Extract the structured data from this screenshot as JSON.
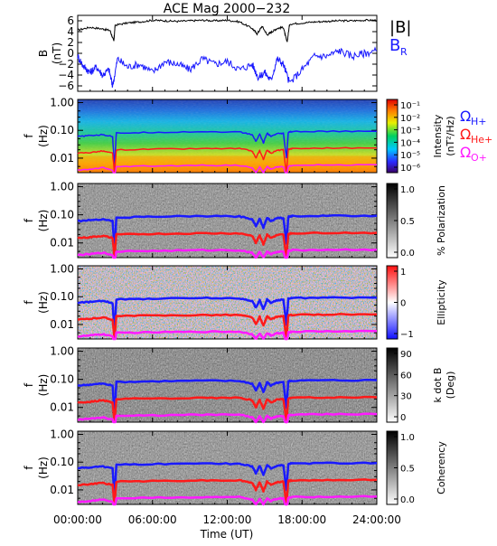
{
  "title": "ACE Mag 2000−232",
  "time_axis": {
    "label": "Time (UT)",
    "ticks": [
      "00:00:00",
      "06:00:00",
      "12:00:00",
      "18:00:00",
      "24:00:00"
    ],
    "values_hours": [
      0,
      6,
      12,
      18,
      24
    ]
  },
  "freq_axis": {
    "label_f": "f",
    "label_unit": "(Hz)",
    "ticks": [
      "1.00",
      "0.10",
      "0.01"
    ],
    "tick_values": [
      1.0,
      0.1,
      0.01
    ],
    "range": [
      0.003,
      1.3
    ],
    "scale": "log"
  },
  "gyro_labels": {
    "h": {
      "main": "Ω",
      "sub": "H+",
      "color": "#1a1aff"
    },
    "he": {
      "main": "Ω",
      "sub": "He+",
      "color": "#ff1a1a"
    },
    "o": {
      "main": "Ω",
      "sub": "O+",
      "color": "#ff1aff"
    }
  },
  "panels": [
    {
      "id": "field",
      "ylabel": "B",
      "yunit": "(nT)",
      "ticks": [
        "6",
        "4",
        "2",
        "0",
        "−2",
        "−4",
        "−6"
      ],
      "tick_values": [
        6,
        4,
        2,
        0,
        -2,
        -4,
        -6
      ],
      "ylim": [
        -7,
        7
      ],
      "legend": [
        {
          "text": "|B|",
          "sub": "",
          "color": "#000000"
        },
        {
          "text": "B",
          "sub": "R",
          "color": "#1a1aff"
        }
      ]
    },
    {
      "id": "intensity",
      "colorbar_label": "Intensity",
      "colorbar_unit": "(nT²/Hz)",
      "colorbar_ticks": [
        "10⁻¹",
        "10⁻²",
        "10⁻³",
        "10⁻⁴",
        "10⁻⁵",
        "10⁻⁶"
      ],
      "colorbar_scale": "rainbow"
    },
    {
      "id": "polarization",
      "colorbar_label": "% Polarization",
      "colorbar_ticks": [
        "1.0",
        "0.5",
        "0.0"
      ],
      "colorbar_scale": "gray"
    },
    {
      "id": "ellipticity",
      "colorbar_label": "Ellipticity",
      "colorbar_ticks": [
        "1",
        "0",
        "−1"
      ],
      "colorbar_scale": "blue-white-red"
    },
    {
      "id": "kdotb",
      "colorbar_label": "k dot B",
      "colorbar_unit": "(Deg)",
      "colorbar_ticks": [
        "90",
        "60",
        "30",
        "0"
      ],
      "colorbar_scale": "gray"
    },
    {
      "id": "coherency",
      "colorbar_label": "Coherency",
      "colorbar_ticks": [
        "1.0",
        "0.5",
        "0.0"
      ],
      "colorbar_scale": "gray"
    }
  ],
  "chart_data": {
    "type": "line",
    "title": "ACE Mag 2000−232",
    "xlabel": "Time (UT)",
    "xlim_hours": [
      0,
      24
    ],
    "field_series": [
      {
        "name": "|B|",
        "color": "#000000",
        "x": [
          0,
          1,
          2,
          2.6,
          2.9,
          3,
          4,
          5,
          6,
          7,
          8,
          9,
          10,
          11,
          12,
          13,
          14,
          14.4,
          14.8,
          15.2,
          15.6,
          16,
          16.5,
          16.8,
          17,
          18,
          19,
          20,
          21,
          22,
          23,
          24
        ],
        "y": [
          4.3,
          4.8,
          4.5,
          4.2,
          2.2,
          5.2,
          5.6,
          5.8,
          6.1,
          6.0,
          5.9,
          6.0,
          6.1,
          6.0,
          6.1,
          5.8,
          4.6,
          3.6,
          5.0,
          3.4,
          4.0,
          4.6,
          4.8,
          2.0,
          5.4,
          5.6,
          5.8,
          5.9,
          6.0,
          6.0,
          6.1,
          6.1
        ]
      },
      {
        "name": "B",
        "color": "#1a1aff",
        "x": [
          0,
          0.5,
          1,
          1.5,
          2,
          2.5,
          2.8,
          3.2,
          4,
          5,
          6,
          7,
          8,
          9,
          10,
          11,
          12,
          13,
          14,
          14.5,
          15,
          15.5,
          16,
          16.5,
          17,
          18,
          19,
          20,
          21,
          22,
          23,
          24
        ],
        "y": [
          -0.5,
          -2.5,
          -3.5,
          -2.5,
          -4.0,
          -3.0,
          -6.0,
          -1.0,
          -2.5,
          -2.0,
          -3.5,
          -1.5,
          -2.0,
          -3.0,
          -1.0,
          -2.0,
          -1.5,
          -3.0,
          -2.0,
          -4.5,
          -3.5,
          -5.0,
          -1.0,
          -2.0,
          -5.5,
          -3.0,
          -0.5,
          -0.5,
          0.5,
          -0.5,
          0.0,
          0.5
        ]
      }
    ],
    "gyrofrequency_series": [
      {
        "name": "Ω H+",
        "color": "#1a1aff",
        "x": [
          0,
          1,
          2,
          2.8,
          2.95,
          3.1,
          6,
          10,
          13,
          14,
          14.3,
          14.6,
          14.9,
          15.2,
          15.5,
          16,
          16.5,
          16.75,
          16.9,
          17.2,
          20,
          24
        ],
        "y": [
          0.06,
          0.065,
          0.07,
          0.06,
          0.005,
          0.08,
          0.085,
          0.09,
          0.087,
          0.07,
          0.04,
          0.075,
          0.035,
          0.08,
          0.06,
          0.075,
          0.078,
          0.01,
          0.085,
          0.09,
          0.092,
          0.093
        ]
      },
      {
        "name": "Ω He+",
        "color": "#ff1a1a",
        "x": [
          0,
          1,
          2,
          2.8,
          2.95,
          3.1,
          6,
          10,
          13,
          14,
          14.3,
          14.6,
          14.9,
          15.2,
          15.5,
          16,
          16.5,
          16.75,
          16.9,
          17.2,
          20,
          24
        ],
        "y": [
          0.015,
          0.016,
          0.018,
          0.015,
          0.003,
          0.02,
          0.021,
          0.022,
          0.022,
          0.018,
          0.01,
          0.019,
          0.009,
          0.02,
          0.015,
          0.019,
          0.02,
          0.003,
          0.021,
          0.022,
          0.023,
          0.023
        ]
      },
      {
        "name": "Ω O+",
        "color": "#ff1aff",
        "x": [
          0,
          1,
          2,
          2.8,
          2.95,
          3.1,
          6,
          10,
          13,
          14,
          14.3,
          14.6,
          14.9,
          15.2,
          15.5,
          16,
          16.5,
          16.75,
          16.9,
          17.2,
          20,
          24
        ],
        "y": [
          0.0037,
          0.004,
          0.0045,
          0.0037,
          0.002,
          0.005,
          0.0052,
          0.0055,
          0.0055,
          0.0045,
          0.003,
          0.0048,
          0.003,
          0.005,
          0.004,
          0.0048,
          0.005,
          0.002,
          0.0052,
          0.0055,
          0.0057,
          0.0058
        ]
      }
    ]
  }
}
